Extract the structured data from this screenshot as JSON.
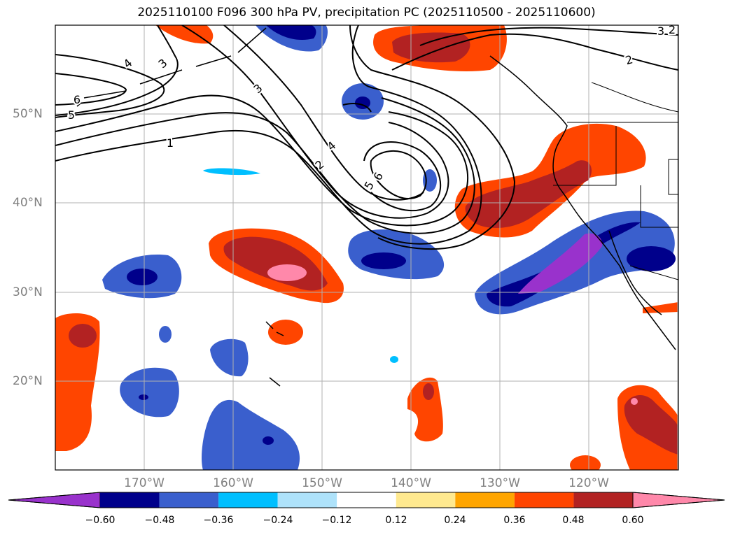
{
  "title": "2025110100 F096 300 hPa PV, precipitation PC (2025110500 - 2025110600)",
  "lon_labels": [
    "170°W",
    "160°W",
    "150°W",
    "140°W",
    "130°W",
    "120°W"
  ],
  "lat_labels": [
    "50°N",
    "40°N",
    "30°N",
    "20°N"
  ],
  "contour_labels": [
    "1",
    "2",
    "3",
    "4",
    "5",
    "6",
    "2",
    "3",
    "4",
    "5",
    "6",
    "2",
    "3"
  ],
  "colorbar": {
    "ticks": [
      "−0.60",
      "−0.48",
      "−0.36",
      "−0.24",
      "−0.12",
      "0.12",
      "0.24",
      "0.36",
      "0.48",
      "0.60"
    ],
    "colors": [
      "#9932cc",
      "#00008b",
      "#3a5fcd",
      "#00bfff",
      "#aee2fa",
      "#ffffff",
      "#ffe98f",
      "#ffa500",
      "#ff4500",
      "#b22222",
      "#ff88aa"
    ]
  },
  "colors": {
    "pv_contour": "#000000",
    "coastline": "#000000",
    "gridline": "#b0b0b0"
  }
}
